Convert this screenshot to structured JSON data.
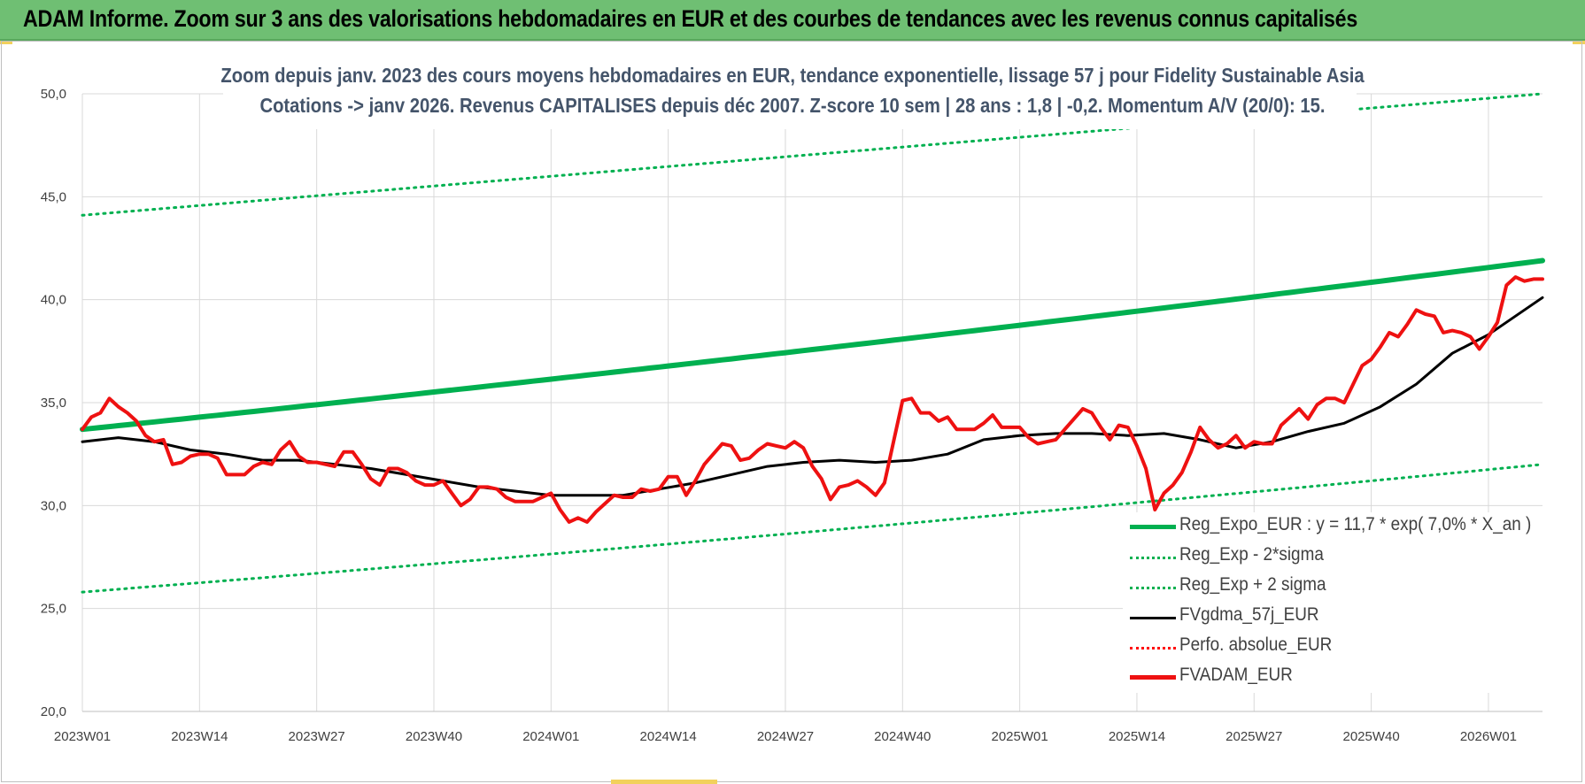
{
  "header": {
    "title": "ADAM Informe. Zoom sur 3 ans des valorisations hebdomadaires en EUR et des courbes de tendances avec les revenus connus capitalisés"
  },
  "colors": {
    "header_bg": "#6fbf73",
    "trend": "#00b050",
    "sigma": "#00b050",
    "average": "#000000",
    "perfo": "#ff0000",
    "price": "#ee1111",
    "grid": "#d9d9d9",
    "title_text": "#44546a"
  },
  "chart_data": {
    "type": "line",
    "title_line1": "Zoom depuis janv. 2023 des cours moyens hebdomadaires en EUR, tendance exponentielle, lissage 57 j pour Fidelity Sustainable Asia",
    "title_line2": "Cotations -> janv 2026. Revenus CAPITALISES depuis déc 2007. Z-score 10 sem | 28 ans : 1,8 | -0,2. Momentum A/V (20/0): 15.",
    "y_ticks": [
      "20,0",
      "25,0",
      "30,0",
      "35,0",
      "40,0",
      "45,0",
      "50,0"
    ],
    "ylim": [
      20,
      50
    ],
    "x_ticks": [
      "2023W01",
      "2023W14",
      "2023W27",
      "2023W40",
      "2024W01",
      "2024W14",
      "2024W27",
      "2024W40",
      "2025W01",
      "2025W14",
      "2025W27",
      "2025W40",
      "2026W01"
    ],
    "x_range_weeks": [
      0,
      162
    ],
    "grid": true,
    "legend_position": "bottom-right",
    "legend": [
      {
        "label": "Reg_Expo_EUR : y = 11,7 * exp( 7,0% *  X_an )",
        "style": "solid-thick",
        "color": "#00b050"
      },
      {
        "label": "Reg_Exp - 2*sigma",
        "style": "dotted",
        "color": "#00b050"
      },
      {
        "label": "Reg_Exp + 2 sigma",
        "style": "dotted",
        "color": "#00b050"
      },
      {
        "label": "FVgdma_57j_EUR",
        "style": "solid",
        "color": "#000000"
      },
      {
        "label": "Perfo. absolue_EUR",
        "style": "dotted",
        "color": "#ff0000"
      },
      {
        "label": "FVADAM_EUR",
        "style": "solid-thick",
        "color": "#ee1111"
      }
    ],
    "series": [
      {
        "name": "Reg_Expo_EUR : y = 11,7 * exp( 7,0% *  X_an )",
        "x": [
          0,
          162
        ],
        "values": [
          33.7,
          41.9
        ],
        "interpolation": "exponential"
      },
      {
        "name": "Reg_Exp - 2*sigma",
        "x": [
          0,
          162
        ],
        "values": [
          25.8,
          32.0
        ],
        "interpolation": "exponential"
      },
      {
        "name": "Reg_Exp + 2 sigma",
        "x": [
          0,
          162
        ],
        "values": [
          44.1,
          50.0
        ],
        "interpolation": "linear"
      },
      {
        "name": "FVgdma_57j_EUR",
        "x": [
          0,
          4,
          8,
          12,
          16,
          20,
          24,
          28,
          32,
          36,
          40,
          44,
          48,
          52,
          56,
          60,
          64,
          68,
          72,
          76,
          80,
          84,
          88,
          92,
          96,
          100,
          104,
          108,
          112,
          116,
          120,
          124,
          128,
          132,
          136,
          140,
          144,
          148,
          152,
          156,
          162
        ],
        "values": [
          33.1,
          33.3,
          33.1,
          32.7,
          32.5,
          32.2,
          32.2,
          32.0,
          31.8,
          31.5,
          31.2,
          30.9,
          30.7,
          30.5,
          30.5,
          30.5,
          30.8,
          31.1,
          31.5,
          31.9,
          32.1,
          32.2,
          32.1,
          32.2,
          32.5,
          33.2,
          33.4,
          33.5,
          33.5,
          33.4,
          33.5,
          33.2,
          32.8,
          33.1,
          33.6,
          34.0,
          34.8,
          35.9,
          37.4,
          38.3,
          40.1
        ]
      },
      {
        "name": "Perfo. absolue_EUR",
        "x": [],
        "values": []
      },
      {
        "name": "FVADAM_EUR",
        "x": [
          0,
          1,
          2,
          3,
          4,
          5,
          6,
          7,
          8,
          9,
          10,
          11,
          12,
          13,
          14,
          15,
          16,
          17,
          18,
          19,
          20,
          21,
          22,
          23,
          24,
          25,
          26,
          27,
          28,
          29,
          30,
          31,
          32,
          33,
          34,
          35,
          36,
          37,
          38,
          39,
          40,
          41,
          42,
          43,
          44,
          45,
          46,
          47,
          48,
          49,
          50,
          51,
          52,
          53,
          54,
          55,
          56,
          57,
          58,
          59,
          60,
          61,
          62,
          63,
          64,
          65,
          66,
          67,
          68,
          69,
          70,
          71,
          72,
          73,
          74,
          75,
          76,
          77,
          78,
          79,
          80,
          81,
          82,
          83,
          84,
          85,
          86,
          87,
          88,
          89,
          90,
          91,
          92,
          93,
          94,
          95,
          96,
          97,
          98,
          99,
          100,
          101,
          102,
          103,
          104,
          105,
          106,
          107,
          108,
          109,
          110,
          111,
          112,
          113,
          114,
          115,
          116,
          117,
          118,
          119,
          120,
          121,
          122,
          123,
          124,
          125,
          126,
          127,
          128,
          129,
          130,
          131,
          132,
          133,
          134,
          135,
          136,
          137,
          138,
          139,
          140,
          141,
          142,
          143,
          144,
          145,
          146,
          147,
          148,
          149,
          150,
          151,
          152,
          153,
          154,
          155,
          156,
          157,
          158,
          159,
          160,
          161,
          162
        ],
        "values": [
          33.7,
          34.3,
          34.5,
          35.2,
          34.8,
          34.5,
          34.1,
          33.4,
          33.1,
          33.2,
          32.0,
          32.1,
          32.4,
          32.5,
          32.5,
          32.3,
          31.5,
          31.5,
          31.5,
          31.9,
          32.1,
          32.0,
          32.7,
          33.1,
          32.4,
          32.1,
          32.1,
          32.0,
          31.9,
          32.6,
          32.6,
          32.0,
          31.3,
          31.0,
          31.8,
          31.8,
          31.6,
          31.2,
          31.0,
          31.0,
          31.2,
          30.6,
          30.0,
          30.3,
          30.9,
          30.9,
          30.8,
          30.4,
          30.2,
          30.2,
          30.2,
          30.4,
          30.6,
          29.8,
          29.2,
          29.4,
          29.2,
          29.7,
          30.1,
          30.5,
          30.4,
          30.4,
          30.8,
          30.7,
          30.8,
          31.4,
          31.4,
          30.5,
          31.2,
          32.0,
          32.5,
          33.0,
          32.9,
          32.2,
          32.3,
          32.7,
          33.0,
          32.9,
          32.8,
          33.1,
          32.8,
          31.9,
          31.3,
          30.3,
          30.9,
          31.0,
          31.2,
          30.9,
          30.5,
          31.1,
          33.1,
          35.1,
          35.2,
          34.5,
          34.5,
          34.1,
          34.3,
          33.7,
          33.7,
          33.7,
          34.0,
          34.4,
          33.8,
          33.8,
          33.8,
          33.3,
          33.0,
          33.1,
          33.2,
          33.7,
          34.2,
          34.7,
          34.5,
          33.8,
          33.2,
          33.9,
          33.8,
          32.9,
          31.8,
          29.8,
          30.6,
          31.0,
          31.6,
          32.6,
          33.8,
          33.2,
          32.8,
          33.0,
          33.4,
          32.8,
          33.1,
          33.0,
          33.0,
          33.9,
          34.3,
          34.7,
          34.2,
          34.9,
          35.2,
          35.2,
          35.0,
          35.9,
          36.8,
          37.1,
          37.7,
          38.4,
          38.2,
          38.8,
          39.5,
          39.3,
          39.2,
          38.4,
          38.5,
          38.4,
          38.2,
          37.6,
          38.2,
          38.9,
          40.7,
          41.1,
          40.9,
          41.0,
          41.0
        ]
      }
    ]
  }
}
